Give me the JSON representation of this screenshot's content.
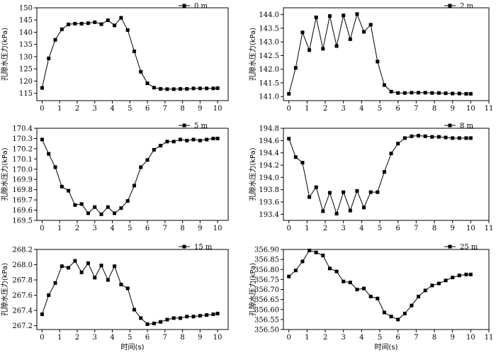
{
  "chart_data": [
    {
      "type": "line",
      "legend": "0 m",
      "ylabel": "孔隙水压力(kPa)",
      "xlabel": "",
      "xlim": [
        -0.3,
        10.6
      ],
      "ylim": [
        112,
        150
      ],
      "xticks": [
        "0",
        "1",
        "2",
        "3",
        "4",
        "5",
        "6",
        "7",
        "8",
        "9",
        "10"
      ],
      "yticks": [
        "115",
        "120",
        "125",
        "130",
        "135",
        "140",
        "145",
        "150"
      ],
      "x": [
        0,
        0.375,
        0.75,
        1.125,
        1.5,
        1.875,
        2.25,
        2.625,
        3,
        3.375,
        3.75,
        4.125,
        4.5,
        4.875,
        5.25,
        5.625,
        6,
        6.375,
        6.75,
        7.125,
        7.5,
        7.875,
        8.25,
        8.625,
        9,
        9.375,
        9.75,
        10
      ],
      "values": [
        117.2,
        129.3,
        136.9,
        141.2,
        143.2,
        143.5,
        143.5,
        143.7,
        144.1,
        143.3,
        144.9,
        142.8,
        145.9,
        140.9,
        132.2,
        123.8,
        119.1,
        117.3,
        116.8,
        116.7,
        116.7,
        116.8,
        116.8,
        117.0,
        117.0,
        117.0,
        117.0,
        117.1
      ]
    },
    {
      "type": "line",
      "legend": "2 m",
      "ylabel": "孔隙水压力(kPa)",
      "xlabel": "",
      "xlim": [
        -0.3,
        11
      ],
      "ylim": [
        140.85,
        144.25
      ],
      "xticks": [
        "0",
        "1",
        "2",
        "3",
        "4",
        "5",
        "6",
        "7",
        "8",
        "9",
        "10",
        "11"
      ],
      "yticks": [
        "141.0",
        "141.5",
        "142.0",
        "142.5",
        "143.0",
        "143.5",
        "144.0"
      ],
      "x": [
        0,
        0.375,
        0.75,
        1.125,
        1.5,
        1.875,
        2.25,
        2.625,
        3,
        3.375,
        3.75,
        4.125,
        4.5,
        4.875,
        5.25,
        5.625,
        6,
        6.375,
        6.75,
        7.125,
        7.5,
        7.875,
        8.25,
        8.625,
        9,
        9.375,
        9.75,
        10
      ],
      "values": [
        141.1,
        142.05,
        143.35,
        142.7,
        143.9,
        142.75,
        143.95,
        142.85,
        143.97,
        143.1,
        144.02,
        143.37,
        143.63,
        142.28,
        141.42,
        141.18,
        141.13,
        141.13,
        141.14,
        141.14,
        141.14,
        141.13,
        141.13,
        141.12,
        141.11,
        141.11,
        141.1,
        141.1
      ]
    },
    {
      "type": "line",
      "legend": "5 m",
      "ylabel": "孔隙水压力(kPa)",
      "xlabel": "",
      "xlim": [
        -0.3,
        10.6
      ],
      "ylim": [
        169.5,
        170.4
      ],
      "xticks": [
        "0",
        "1",
        "2",
        "3",
        "4",
        "5",
        "6",
        "7",
        "8",
        "9",
        "10"
      ],
      "yticks": [
        "169.5",
        "169.6",
        "169.7",
        "169.8",
        "169.9",
        "170.0",
        "170.1",
        "170.2",
        "170.3",
        "170.4"
      ],
      "x": [
        0,
        0.375,
        0.75,
        1.125,
        1.5,
        1.875,
        2.25,
        2.625,
        3,
        3.375,
        3.75,
        4.125,
        4.5,
        4.875,
        5.25,
        5.625,
        6,
        6.375,
        6.75,
        7.125,
        7.5,
        7.875,
        8.25,
        8.625,
        9,
        9.375,
        9.75,
        10
      ],
      "values": [
        170.29,
        170.15,
        170.02,
        169.83,
        169.79,
        169.65,
        169.66,
        169.57,
        169.63,
        169.56,
        169.63,
        169.57,
        169.62,
        169.69,
        169.84,
        170.02,
        170.09,
        170.19,
        170.23,
        170.27,
        170.27,
        170.29,
        170.28,
        170.29,
        170.28,
        170.29,
        170.3,
        170.3
      ]
    },
    {
      "type": "line",
      "legend": "8 m",
      "ylabel": "孔隙水压力(kPa)",
      "xlabel": "",
      "xlim": [
        -0.3,
        11
      ],
      "ylim": [
        193.3,
        194.8
      ],
      "xticks": [
        "0",
        "1",
        "2",
        "3",
        "4",
        "5",
        "6",
        "7",
        "8",
        "9",
        "10",
        "11"
      ],
      "yticks": [
        "193.4",
        "193.6",
        "193.8",
        "194.0",
        "194.2",
        "194.4",
        "194.6",
        "194.8"
      ],
      "x": [
        0,
        0.375,
        0.75,
        1.125,
        1.5,
        1.875,
        2.25,
        2.625,
        3,
        3.375,
        3.75,
        4.125,
        4.5,
        4.875,
        5.25,
        5.625,
        6,
        6.375,
        6.75,
        7.125,
        7.5,
        7.875,
        8.25,
        8.625,
        9,
        9.375,
        9.75,
        10
      ],
      "values": [
        194.63,
        194.33,
        194.24,
        193.68,
        193.84,
        193.45,
        193.75,
        193.41,
        193.76,
        193.46,
        193.78,
        193.51,
        193.76,
        193.76,
        194.09,
        194.39,
        194.55,
        194.64,
        194.67,
        194.68,
        194.67,
        194.66,
        194.66,
        194.65,
        194.64,
        194.64,
        194.64,
        194.64
      ]
    },
    {
      "type": "line",
      "legend": "15 m",
      "ylabel": "孔隙水压力(kPa)",
      "xlabel": "时间(s)",
      "xlim": [
        -0.3,
        10.6
      ],
      "ylim": [
        267.15,
        268.2
      ],
      "xticks": [
        "0",
        "1",
        "2",
        "3",
        "4",
        "5",
        "6",
        "7",
        "8",
        "9",
        "10"
      ],
      "yticks": [
        "267.2",
        "267.4",
        "267.6",
        "267.8",
        "268.0",
        "268.2"
      ],
      "x": [
        0,
        0.375,
        0.75,
        1.125,
        1.5,
        1.875,
        2.25,
        2.625,
        3,
        3.375,
        3.75,
        4.125,
        4.5,
        4.875,
        5.25,
        5.625,
        6,
        6.375,
        6.75,
        7.125,
        7.5,
        7.875,
        8.25,
        8.625,
        9,
        9.375,
        9.75,
        10
      ],
      "values": [
        267.35,
        267.6,
        267.76,
        267.98,
        267.96,
        268.05,
        267.9,
        268.02,
        267.83,
        267.99,
        267.8,
        267.98,
        267.74,
        267.69,
        267.41,
        267.3,
        267.22,
        267.23,
        267.25,
        267.28,
        267.3,
        267.3,
        267.32,
        267.32,
        267.33,
        267.34,
        267.35,
        267.36
      ]
    },
    {
      "type": "line",
      "legend": "25 m",
      "ylabel": "孔隙水压力(kPa)",
      "xlabel": "时间(s)",
      "xlim": [
        -0.3,
        11
      ],
      "ylim": [
        356.5,
        356.9
      ],
      "xticks": [
        "0",
        "1",
        "2",
        "3",
        "4",
        "5",
        "6",
        "7",
        "8",
        "9",
        "10",
        "11"
      ],
      "yticks": [
        "356.50",
        "356.55",
        "356.60",
        "356.65",
        "356.70",
        "356.75",
        "356.80",
        "356.85",
        "356.90"
      ],
      "x": [
        0,
        0.375,
        0.75,
        1.125,
        1.5,
        1.875,
        2.25,
        2.625,
        3,
        3.375,
        3.75,
        4.125,
        4.5,
        4.875,
        5.25,
        5.625,
        6,
        6.375,
        6.75,
        7.125,
        7.5,
        7.875,
        8.25,
        8.625,
        9,
        9.375,
        9.75,
        10
      ],
      "values": [
        356.765,
        356.795,
        356.84,
        356.895,
        356.885,
        356.87,
        356.805,
        356.79,
        356.74,
        356.735,
        356.7,
        356.705,
        356.665,
        356.655,
        356.585,
        356.565,
        356.55,
        356.58,
        356.62,
        356.665,
        356.695,
        356.72,
        356.73,
        356.745,
        356.76,
        356.77,
        356.775,
        356.775
      ]
    }
  ]
}
